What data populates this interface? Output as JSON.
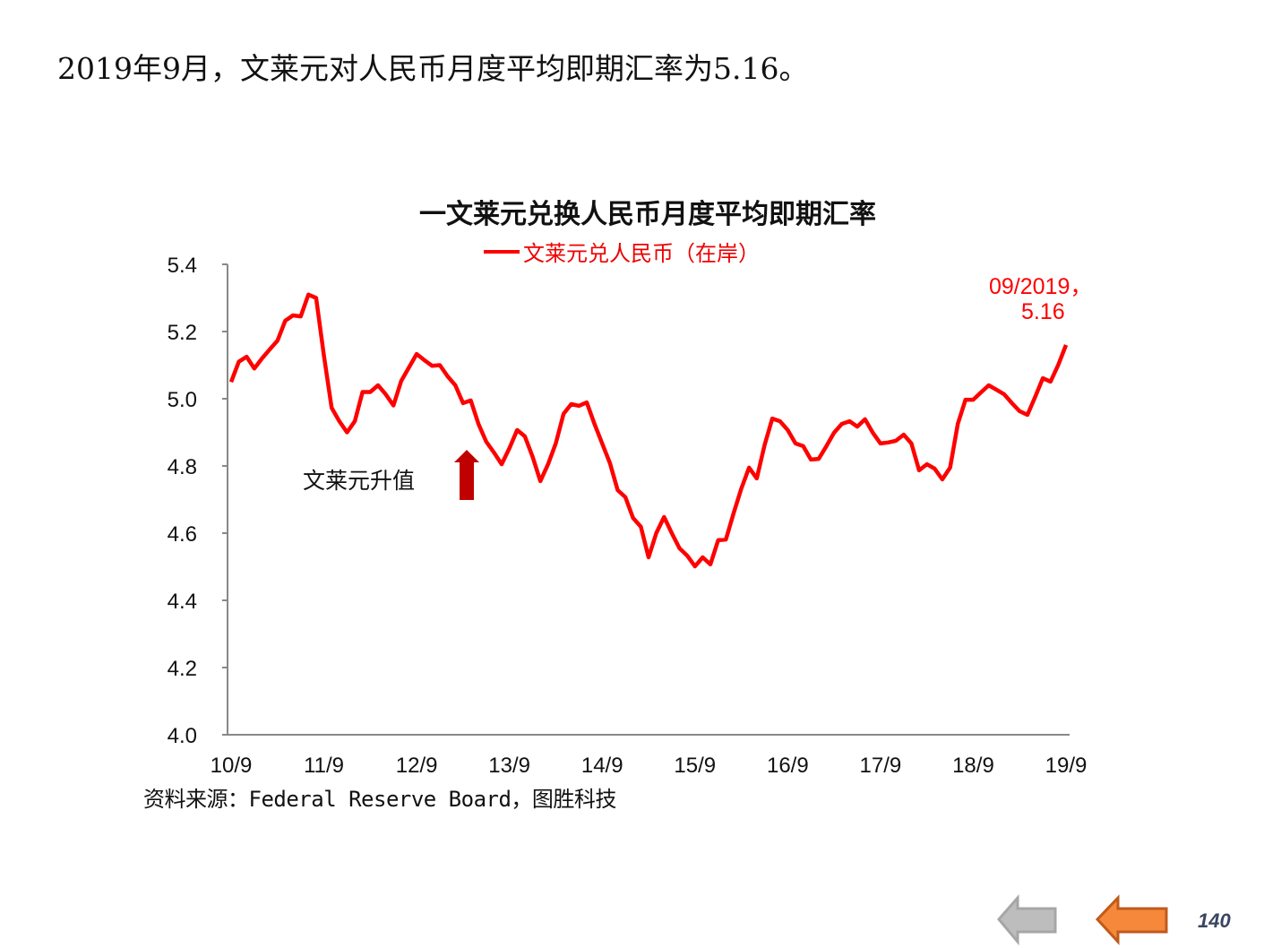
{
  "headline": "2019年9月，文莱元对人民币月度平均即期汇率为5.16。",
  "chart_data": {
    "type": "line",
    "title": "一文莱元兑换人民币月度平均即期汇率",
    "xlabel": "",
    "ylabel": "",
    "ylim": [
      4.0,
      5.4
    ],
    "yticks": [
      "5.4",
      "5.2",
      "5.0",
      "4.8",
      "4.6",
      "4.4",
      "4.2",
      "4.0"
    ],
    "xticks": [
      "10/9",
      "11/9",
      "12/9",
      "13/9",
      "14/9",
      "15/9",
      "16/9",
      "17/9",
      "18/9",
      "19/9"
    ],
    "grid": false,
    "legend_position": "top",
    "x": [
      "10/9",
      "10/10",
      "10/11",
      "10/12",
      "11/1",
      "11/2",
      "11/3",
      "11/4",
      "11/5",
      "11/6",
      "11/7",
      "11/8",
      "11/9",
      "11/10",
      "11/11",
      "11/12",
      "12/1",
      "12/2",
      "12/3",
      "12/4",
      "12/5",
      "12/6",
      "12/7",
      "12/8",
      "12/9",
      "12/10",
      "12/11",
      "12/12",
      "13/1",
      "13/2",
      "13/3",
      "13/4",
      "13/5",
      "13/6",
      "13/7",
      "13/8",
      "13/9",
      "13/10",
      "13/11",
      "13/12",
      "14/1",
      "14/2",
      "14/3",
      "14/4",
      "14/5",
      "14/6",
      "14/7",
      "14/8",
      "14/9",
      "14/10",
      "14/11",
      "14/12",
      "15/1",
      "15/2",
      "15/3",
      "15/4",
      "15/5",
      "15/6",
      "15/7",
      "15/8",
      "15/9",
      "15/10",
      "15/11",
      "15/12",
      "16/1",
      "16/2",
      "16/3",
      "16/4",
      "16/5",
      "16/6",
      "16/7",
      "16/8",
      "16/9",
      "16/10",
      "16/11",
      "16/12",
      "17/1",
      "17/2",
      "17/3",
      "17/4",
      "17/5",
      "17/6",
      "17/7",
      "17/8",
      "17/9",
      "17/10",
      "17/11",
      "17/12",
      "18/1",
      "18/2",
      "18/3",
      "18/4",
      "18/5",
      "18/6",
      "18/7",
      "18/8",
      "18/9",
      "18/10",
      "18/11",
      "18/12",
      "19/1",
      "19/2",
      "19/3",
      "19/4",
      "19/5",
      "19/6",
      "19/7",
      "19/8",
      "19/9"
    ],
    "series": [
      {
        "name": "文莱元兑人民币（在岸）",
        "color": "#ff0000",
        "values": [
          5.05,
          5.11,
          5.125,
          5.09,
          5.12,
          5.147,
          5.173,
          5.232,
          5.248,
          5.245,
          5.31,
          5.3,
          5.128,
          4.973,
          4.933,
          4.9,
          4.933,
          5.02,
          5.02,
          5.04,
          5.013,
          4.98,
          5.053,
          5.093,
          5.133,
          5.115,
          5.098,
          5.1,
          5.067,
          5.04,
          4.987,
          4.995,
          4.925,
          4.872,
          4.84,
          4.805,
          4.853,
          4.907,
          4.888,
          4.827,
          4.755,
          4.805,
          4.867,
          4.955,
          4.984,
          4.979,
          4.989,
          4.925,
          4.867,
          4.808,
          4.728,
          4.707,
          4.645,
          4.619,
          4.528,
          4.6,
          4.648,
          4.6,
          4.555,
          4.533,
          4.501,
          4.528,
          4.507,
          4.579,
          4.581,
          4.659,
          4.733,
          4.795,
          4.763,
          4.861,
          4.941,
          4.933,
          4.907,
          4.867,
          4.859,
          4.819,
          4.821,
          4.859,
          4.899,
          4.925,
          4.933,
          4.917,
          4.939,
          4.899,
          4.867,
          4.87,
          4.875,
          4.893,
          4.867,
          4.787,
          4.805,
          4.792,
          4.76,
          4.795,
          4.925,
          4.997,
          4.997,
          5.019,
          5.04,
          5.027,
          5.013,
          4.987,
          4.963,
          4.952,
          5.005,
          5.061,
          5.051,
          5.101,
          5.16
        ]
      }
    ],
    "annotations": {
      "appreciation_label": "文莱元升值",
      "arrow_color": "#c00000",
      "callout_date": "09/2019，",
      "callout_value": "5.16"
    }
  },
  "source": "资料来源：Federal Reserve Board，图胜科技",
  "nav": {
    "prev_icon": "arrow-left-gray",
    "prev_color": "#b3b3b3",
    "next_icon": "arrow-left-orange",
    "next_color": "#f5883a"
  },
  "page_number": "140"
}
